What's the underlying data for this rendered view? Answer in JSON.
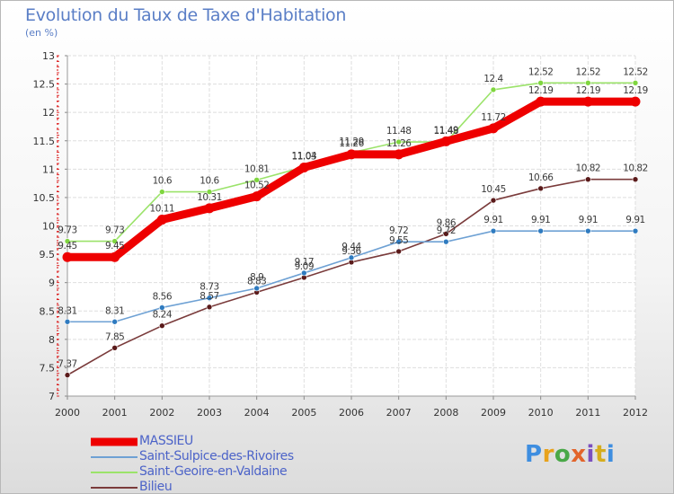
{
  "title": "Evolution du Taux de Taxe d'Habitation",
  "subtitle": "(en %)",
  "logo": [
    "P",
    "r",
    "o",
    "x",
    "i",
    "t",
    "i"
  ],
  "chart_data": {
    "type": "line",
    "title": "Evolution du Taux de Taxe d'Habitation",
    "ylabel": "(en %)",
    "xlabel": "",
    "x": [
      "2000",
      "2001",
      "2002",
      "2003",
      "2004",
      "2005",
      "2006",
      "2007",
      "2008",
      "2009",
      "2010",
      "2011",
      "2012"
    ],
    "ylim": [
      7,
      13
    ],
    "yticks": [
      "7",
      "7.5",
      "8",
      "8.5",
      "9",
      "9.5",
      "10",
      "10.5",
      "11",
      "11.5",
      "12",
      "12.5",
      "13"
    ],
    "grid": true,
    "legend_position": "bottom-left",
    "series": [
      {
        "name": "MASSIEU",
        "color": "#ee0000",
        "values": [
          9.45,
          9.45,
          10.11,
          10.31,
          10.52,
          11.03,
          11.26,
          11.26,
          11.49,
          11.72,
          12.19,
          12.19,
          12.19
        ],
        "labels": [
          "9.45",
          "9.45",
          "10.11",
          "10.31",
          "10.52",
          "11.03",
          "11.26",
          "11.26",
          "11.49",
          "11.72",
          "12.19",
          "12.19",
          "12.19"
        ]
      },
      {
        "name": "Saint-Sulpice-des-Rivoires",
        "color": "#6ea1d4",
        "values": [
          8.31,
          8.31,
          8.56,
          8.73,
          8.9,
          9.17,
          9.44,
          9.72,
          9.72,
          9.91,
          9.91,
          9.91,
          9.91
        ],
        "labels": [
          "8.31",
          "8.31",
          "8.56",
          "8.73",
          "8.9",
          "9.17",
          "9.44",
          "9.72",
          "9.72",
          "9.91",
          "9.91",
          "9.91",
          "9.91"
        ]
      },
      {
        "name": "Saint-Geoire-en-Valdaine",
        "color": "#9be36a",
        "values": [
          9.73,
          9.73,
          10.6,
          10.6,
          10.81,
          11.04,
          11.29,
          11.48,
          11.48,
          12.4,
          12.52,
          12.52,
          12.52
        ],
        "labels": [
          "9.73",
          "9.73",
          "10.6",
          "10.6",
          "10.81",
          "11.04",
          "11.29",
          "11.48",
          "11.48",
          "12.4",
          "12.52",
          "12.52",
          "12.52"
        ]
      },
      {
        "name": "Bilieu",
        "color": "#7a3b3b",
        "values": [
          7.37,
          7.85,
          8.24,
          8.57,
          8.83,
          9.09,
          9.36,
          9.55,
          9.86,
          10.45,
          10.66,
          10.82,
          10.82
        ],
        "labels": [
          "7.37",
          "7.85",
          "8.24",
          "8.57",
          "8.83",
          "9.09",
          "9.36",
          "9.55",
          "9.86",
          "10.45",
          "10.66",
          "10.82",
          "10.82"
        ]
      }
    ]
  }
}
